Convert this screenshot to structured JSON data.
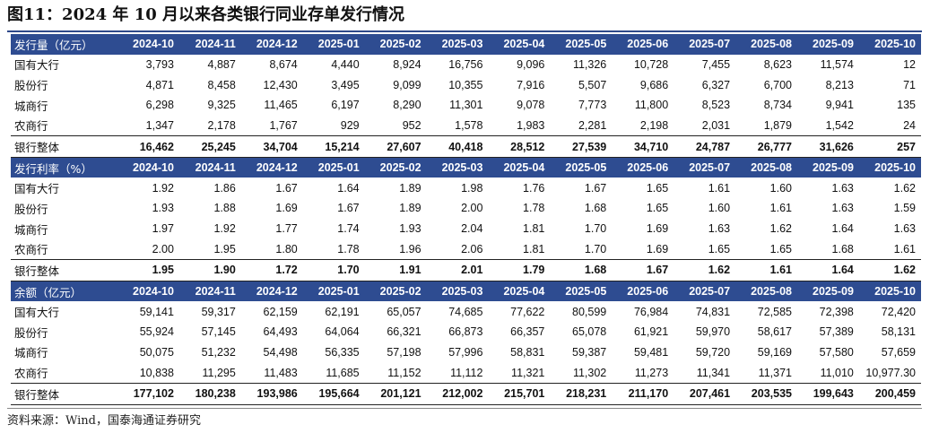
{
  "title": "图11：2024 年 10 月以来各类银行同业存单发行情况",
  "source": "资料来源：Wind，国泰海通证券研究",
  "sections": [
    {
      "header": "发行量（亿元）",
      "months": [
        "2024-10",
        "2024-11",
        "2024-12",
        "2025-01",
        "2025-02",
        "2025-03",
        "2025-04",
        "2025-05",
        "2025-06",
        "2025-07",
        "2025-08",
        "2025-09",
        "2025-10"
      ],
      "rows": [
        {
          "label": "国有大行",
          "values": [
            "3,793",
            "4,887",
            "8,674",
            "4,440",
            "8,924",
            "16,756",
            "9,096",
            "11,326",
            "10,728",
            "7,455",
            "8,623",
            "11,574",
            "12"
          ]
        },
        {
          "label": "股份行",
          "values": [
            "4,871",
            "8,458",
            "12,430",
            "3,495",
            "9,099",
            "10,355",
            "7,916",
            "5,507",
            "9,686",
            "6,327",
            "6,700",
            "8,213",
            "71"
          ]
        },
        {
          "label": "城商行",
          "values": [
            "6,298",
            "9,325",
            "11,465",
            "6,197",
            "8,290",
            "11,301",
            "9,078",
            "7,773",
            "11,800",
            "8,523",
            "8,734",
            "9,941",
            "135"
          ]
        },
        {
          "label": "农商行",
          "values": [
            "1,347",
            "2,178",
            "1,767",
            "929",
            "952",
            "1,578",
            "1,983",
            "2,281",
            "2,198",
            "2,031",
            "1,879",
            "1,542",
            "24"
          ]
        }
      ],
      "total": {
        "label": "银行整体",
        "values": [
          "16,462",
          "25,245",
          "34,704",
          "15,214",
          "27,607",
          "40,418",
          "28,512",
          "27,539",
          "34,710",
          "24,787",
          "26,777",
          "31,626",
          "257"
        ]
      }
    },
    {
      "header": "发行利率（%）",
      "months": [
        "2024-10",
        "2024-11",
        "2024-12",
        "2025-01",
        "2025-02",
        "2025-03",
        "2025-04",
        "2025-05",
        "2025-06",
        "2025-07",
        "2025-08",
        "2025-09",
        "2025-10"
      ],
      "rows": [
        {
          "label": "国有大行",
          "values": [
            "1.92",
            "1.86",
            "1.67",
            "1.64",
            "1.89",
            "1.98",
            "1.76",
            "1.67",
            "1.65",
            "1.61",
            "1.60",
            "1.63",
            "1.62"
          ]
        },
        {
          "label": "股份行",
          "values": [
            "1.93",
            "1.88",
            "1.69",
            "1.67",
            "1.89",
            "2.00",
            "1.78",
            "1.68",
            "1.65",
            "1.60",
            "1.61",
            "1.63",
            "1.59"
          ]
        },
        {
          "label": "城商行",
          "values": [
            "1.97",
            "1.92",
            "1.77",
            "1.74",
            "1.93",
            "2.04",
            "1.81",
            "1.70",
            "1.69",
            "1.63",
            "1.62",
            "1.64",
            "1.63"
          ]
        },
        {
          "label": "农商行",
          "values": [
            "2.00",
            "1.95",
            "1.80",
            "1.78",
            "1.96",
            "2.06",
            "1.81",
            "1.70",
            "1.69",
            "1.65",
            "1.65",
            "1.68",
            "1.61"
          ]
        }
      ],
      "total": {
        "label": "银行整体",
        "values": [
          "1.95",
          "1.90",
          "1.72",
          "1.70",
          "1.91",
          "2.01",
          "1.79",
          "1.68",
          "1.67",
          "1.62",
          "1.61",
          "1.64",
          "1.62"
        ]
      }
    },
    {
      "header": "余额（亿元）",
      "months": [
        "2024-10",
        "2024-11",
        "2024-12",
        "2025-01",
        "2025-02",
        "2025-03",
        "2025-04",
        "2025-05",
        "2025-06",
        "2025-07",
        "2025-08",
        "2025-09",
        "2025-10"
      ],
      "rows": [
        {
          "label": "国有大行",
          "values": [
            "59,141",
            "59,317",
            "62,159",
            "62,191",
            "65,057",
            "74,685",
            "77,622",
            "80,599",
            "76,984",
            "74,831",
            "72,585",
            "72,398",
            "72,420"
          ]
        },
        {
          "label": "股份行",
          "values": [
            "55,924",
            "57,145",
            "64,493",
            "64,064",
            "66,321",
            "66,873",
            "66,357",
            "65,078",
            "61,921",
            "59,970",
            "58,617",
            "57,389",
            "58,131"
          ]
        },
        {
          "label": "城商行",
          "values": [
            "50,075",
            "51,232",
            "54,498",
            "56,335",
            "57,198",
            "57,996",
            "58,831",
            "59,387",
            "59,481",
            "59,720",
            "59,169",
            "57,580",
            "57,659"
          ]
        },
        {
          "label": "农商行",
          "values": [
            "10,838",
            "11,295",
            "11,483",
            "11,685",
            "11,152",
            "11,112",
            "11,321",
            "11,302",
            "11,273",
            "11,341",
            "11,371",
            "11,010",
            "10,977.30"
          ]
        }
      ],
      "total": {
        "label": "银行整体",
        "values": [
          "177,102",
          "180,238",
          "193,986",
          "195,664",
          "201,121",
          "212,002",
          "215,701",
          "218,231",
          "211,170",
          "207,461",
          "203,535",
          "199,643",
          "200,459"
        ]
      }
    }
  ]
}
